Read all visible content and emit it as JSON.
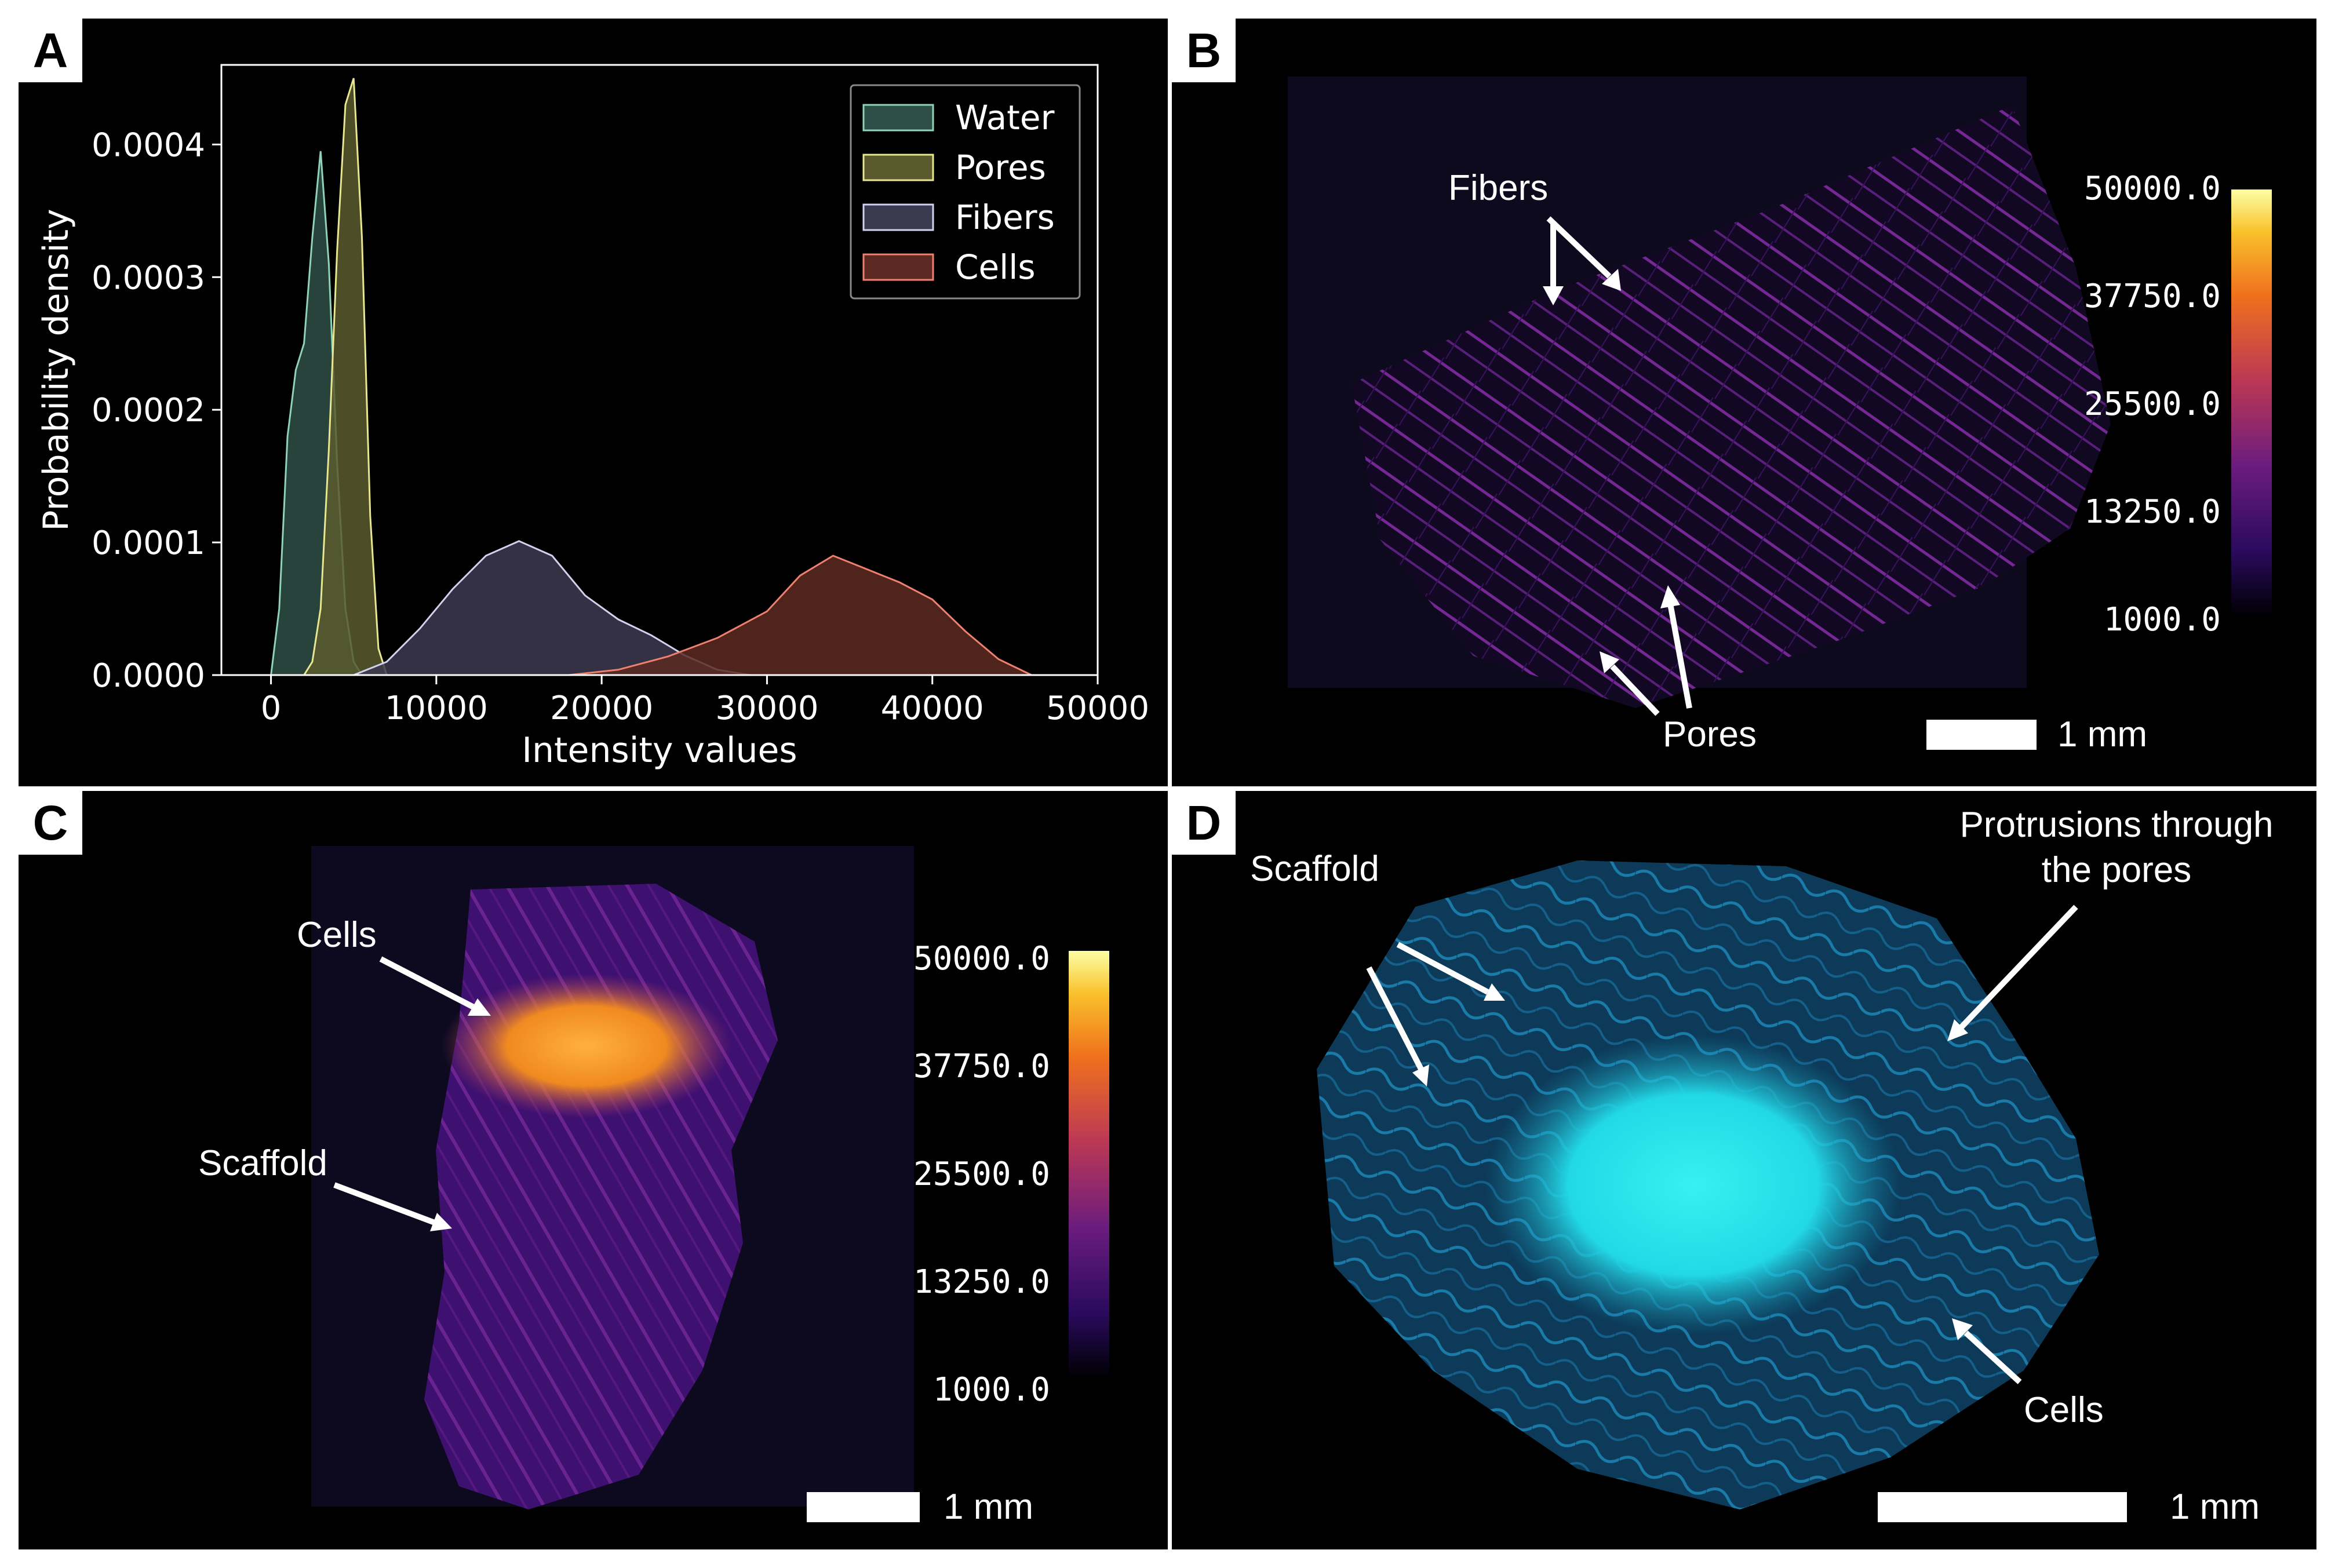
{
  "panels": {
    "A": {
      "label": "A",
      "chart_data": {
        "type": "area",
        "title": "",
        "xlabel": "Intensity values",
        "ylabel": "Probability density",
        "xlim": [
          -3000,
          50000
        ],
        "ylim": [
          0,
          0.00046
        ],
        "xticks": [
          0,
          10000,
          20000,
          30000,
          40000,
          50000
        ],
        "xtick_labels": [
          "0",
          "10000",
          "20000",
          "30000",
          "40000",
          "50000"
        ],
        "yticks": [
          0,
          0.0001,
          0.0002,
          0.0003,
          0.0004
        ],
        "ytick_labels": [
          "0.0000",
          "0.0001",
          "0.0002",
          "0.0003",
          "0.0004"
        ],
        "legend_position": "top-right",
        "series": [
          {
            "name": "Water",
            "color": "#8fd3b8",
            "fill": "#2e4f47",
            "x": [
              0,
              500,
              1000,
              1500,
              2000,
              2500,
              3000,
              3500,
              4000,
              4500,
              5000,
              5500,
              6000
            ],
            "y": [
              0.0,
              5e-05,
              0.00018,
              0.00023,
              0.00025,
              0.00033,
              0.000395,
              0.00031,
              0.00016,
              5e-05,
              1e-05,
              0.0,
              0.0
            ]
          },
          {
            "name": "Pores",
            "color": "#e8e690",
            "fill": "#5a5a2e",
            "x": [
              2000,
              2500,
              3000,
              3500,
              4000,
              4500,
              5000,
              5500,
              6000,
              6500,
              7000
            ],
            "y": [
              0.0,
              1e-05,
              5e-05,
              0.00017,
              0.00032,
              0.00043,
              0.00045,
              0.00033,
              0.00012,
              2e-05,
              0.0
            ]
          },
          {
            "name": "Fibers",
            "color": "#d2d2f0",
            "fill": "#3c3a4f",
            "x": [
              5000,
              7000,
              9000,
              11000,
              13000,
              15000,
              17000,
              19000,
              21000,
              23000,
              25000,
              27000,
              29000
            ],
            "y": [
              0.0,
              1e-05,
              3.5e-05,
              6.5e-05,
              9e-05,
              0.000101,
              9e-05,
              6e-05,
              4.2e-05,
              3e-05,
              1.5e-05,
              4e-06,
              0.0
            ]
          },
          {
            "name": "Cells",
            "color": "#f08070",
            "fill": "#5c2a22",
            "x": [
              18000,
              21000,
              24000,
              27000,
              30000,
              32000,
              34000,
              36000,
              38000,
              40000,
              42000,
              44000,
              46000
            ],
            "y": [
              0.0,
              4e-06,
              1.4e-05,
              2.8e-05,
              4.8e-05,
              7.5e-05,
              9e-05,
              8e-05,
              7e-05,
              5.7e-05,
              3.3e-05,
              1.2e-05,
              0.0
            ]
          }
        ]
      }
    },
    "B": {
      "label": "B",
      "annotations": {
        "fibers": "Fibers",
        "pores": "Pores"
      },
      "colorbar": {
        "ticks": [
          "50000.0",
          "37750.0",
          "25500.0",
          "13250.0",
          "1000.0"
        ],
        "colormap": "inferno"
      },
      "scalebar_label": "1 mm",
      "image_tint": "#8a2a9a"
    },
    "C": {
      "label": "C",
      "annotations": {
        "cells": "Cells",
        "scaffold": "Scaffold"
      },
      "colorbar": {
        "ticks": [
          "50000.0",
          "37750.0",
          "25500.0",
          "13250.0",
          "1000.0"
        ],
        "colormap": "inferno"
      },
      "scalebar_label": "1 mm",
      "image_tint": "#6a1a8a",
      "hot_color": "#f5a030"
    },
    "D": {
      "label": "D",
      "annotations": {
        "scaffold": "Scaffold",
        "protrusions": "Protrusions through the pores",
        "cells": "Cells"
      },
      "scalebar_label": "1 mm",
      "image_tint": "#1a7aa0",
      "hot_color": "#2ee6ea"
    }
  }
}
